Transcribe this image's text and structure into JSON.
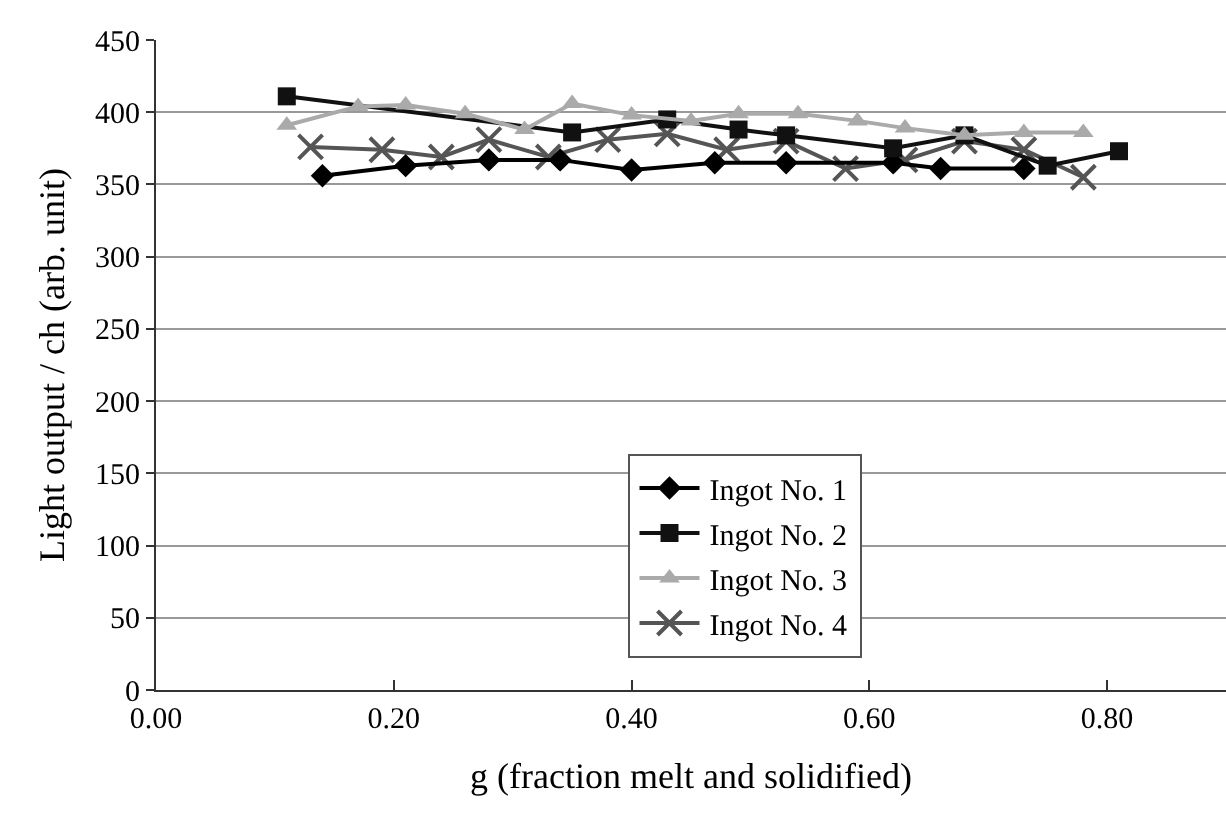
{
  "chart_data": {
    "type": "line",
    "xlabel": "g (fraction melt and solidified)",
    "ylabel": "Light output / ch (arb. unit)",
    "xlim": [
      0,
      0.9
    ],
    "xticks": [
      {
        "value": 0,
        "label": "0.00"
      },
      {
        "value": 0.2,
        "label": "0.20"
      },
      {
        "value": 0.4,
        "label": "0.40"
      },
      {
        "value": 0.6,
        "label": "0.60"
      },
      {
        "value": 0.8,
        "label": "0.80"
      }
    ],
    "ylim": [
      0,
      450
    ],
    "yticks": [
      0,
      50,
      100,
      150,
      200,
      250,
      300,
      350,
      400,
      450
    ],
    "grid": "y",
    "legend": "bottom",
    "line_style": "solid",
    "series": [
      {
        "name": "Ingot No. 1",
        "color": "#000000",
        "marker": "diamond",
        "x": [
          0.14,
          0.21,
          0.28,
          0.34,
          0.4,
          0.47,
          0.53,
          0.62,
          0.66,
          0.73
        ],
        "values": [
          356,
          363,
          367,
          367,
          360,
          365,
          365,
          365,
          361,
          361
        ]
      },
      {
        "name": "Ingot No. 2",
        "color": "#111111",
        "marker": "square",
        "x": [
          0.11,
          0.35,
          0.43,
          0.49,
          0.53,
          0.62,
          0.68,
          0.75,
          0.81
        ],
        "values": [
          411,
          386,
          395,
          388,
          384,
          375,
          384,
          363,
          373
        ]
      },
      {
        "name": "Ingot No. 3",
        "color": "#aaaaaa",
        "marker": "triangle",
        "x": [
          0.11,
          0.17,
          0.21,
          0.26,
          0.31,
          0.35,
          0.4,
          0.45,
          0.49,
          0.54,
          0.59,
          0.63,
          0.68,
          0.73,
          0.78
        ],
        "values": [
          391,
          404,
          405,
          399,
          388,
          406,
          398,
          394,
          399,
          399,
          394,
          389,
          384,
          386,
          386
        ]
      },
      {
        "name": "Ingot No. 4",
        "color": "#555555",
        "marker": "cross",
        "x": [
          0.13,
          0.19,
          0.24,
          0.28,
          0.33,
          0.38,
          0.43,
          0.48,
          0.53,
          0.58,
          0.63,
          0.68,
          0.73,
          0.78
        ],
        "values": [
          376,
          374,
          369,
          381,
          369,
          381,
          385,
          374,
          380,
          361,
          367,
          380,
          374,
          355
        ]
      }
    ]
  }
}
